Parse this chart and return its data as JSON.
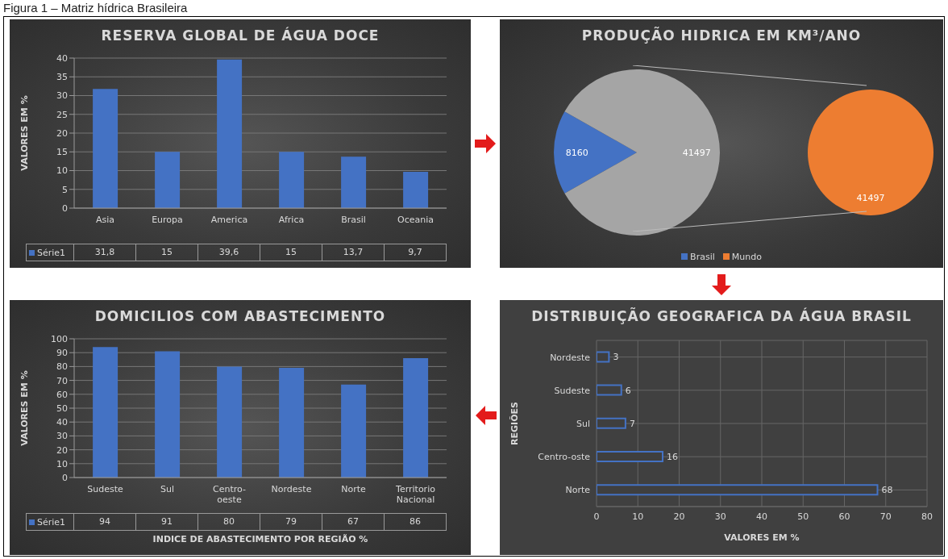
{
  "chart_data": [
    {
      "type": "bar",
      "title": "RESERVA GLOBAL DE ÁGUA DOCE",
      "ylabel": "VALORES EM %",
      "annotations": [
        "Figura 1 – Matriz hídrica Brasileira"
      ],
      "categories": [
        "Asia",
        "Europa",
        "America",
        "Africa",
        "Brasil",
        "Oceania"
      ],
      "series": [
        {
          "name": "Série1",
          "color": "#4472c4",
          "values": [
            31.8,
            15,
            39.6,
            15,
            13.7,
            9.7
          ],
          "value_labels": [
            "31,8",
            "15",
            "39,6",
            "15",
            "13,7",
            "9,7"
          ]
        }
      ],
      "ylim": [
        0,
        40
      ],
      "yticks": [
        0,
        5,
        10,
        15,
        20,
        25,
        30,
        35,
        40
      ],
      "grid": "y",
      "legend": "bottom left"
    },
    {
      "type": "pie",
      "title": "PRODUÇÃO HIDRICA EM KM³/ANO",
      "categories": [
        "Brasil",
        "Mundo"
      ],
      "colors": [
        "#4472c4",
        "#ed7d31"
      ],
      "series": [
        {
          "values": [
            8160,
            41497
          ],
          "colors": [
            "#4472c4",
            "#a5a5a5"
          ]
        },
        {
          "values": [
            null,
            41497
          ],
          "colors": [
            null,
            "#ed7d31"
          ]
        }
      ],
      "data_labels": true,
      "legend": "bottom"
    },
    {
      "type": "bar",
      "title": "DOMICILIOS COM ABASTECIMENTO",
      "ylabel": "VALORES EM %",
      "xlabel": "INDICE DE ABASTECIMENTO POR REGIÃO %",
      "categories": [
        "Sudeste",
        "Sul",
        "Centro-oeste",
        "Nordeste",
        "Norte",
        "Territorio Nacional"
      ],
      "series": [
        {
          "name": "Série1",
          "color": "#4472c4",
          "values": [
            94,
            91,
            80,
            79,
            67,
            86
          ]
        }
      ],
      "ylim": [
        0,
        100
      ],
      "yticks": [
        0,
        10,
        20,
        30,
        40,
        50,
        60,
        70,
        80,
        90,
        100
      ],
      "grid": "y",
      "legend": "bottom left",
      "data_labels": true
    },
    {
      "type": "bar",
      "orientation": "horizontal",
      "title": "DISTRIBUIÇÃO GEOGRAFICA DA ÁGUA BRASIL",
      "xlabel": "VALORES EM %",
      "ylabel": "REGIÕES",
      "categories": [
        "Nordeste",
        "Sudeste",
        "Sul",
        "Centro-oste",
        "Norte"
      ],
      "values": [
        3,
        6,
        7,
        16,
        68
      ],
      "color": "#4472c4",
      "xlim": [
        0,
        80
      ],
      "xticks": [
        0,
        10,
        20,
        30,
        40,
        50,
        60,
        70,
        80
      ],
      "grid": true,
      "data_labels": true
    }
  ]
}
